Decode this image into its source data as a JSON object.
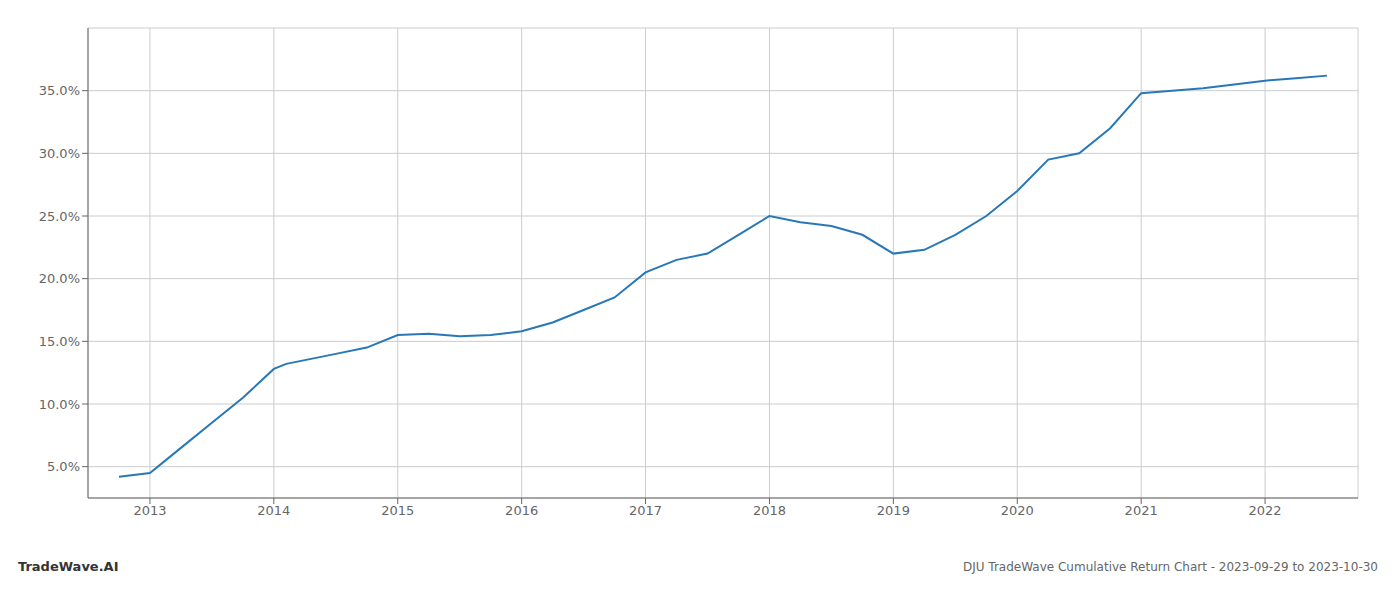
{
  "chart_data": {
    "type": "line",
    "title": "DJU TradeWave Cumulative Return Chart - 2023-09-29 to 2023-10-30",
    "watermark": "TradeWave.AI",
    "color": "#2878b8",
    "x": [
      2012.75,
      2013.0,
      2013.25,
      2013.5,
      2013.75,
      2014.0,
      2014.1,
      2014.25,
      2014.5,
      2014.75,
      2015.0,
      2015.25,
      2015.5,
      2015.75,
      2016.0,
      2016.25,
      2016.5,
      2016.75,
      2017.0,
      2017.25,
      2017.5,
      2017.75,
      2018.0,
      2018.25,
      2018.5,
      2018.75,
      2019.0,
      2019.25,
      2019.5,
      2019.75,
      2020.0,
      2020.25,
      2020.5,
      2020.75,
      2021.0,
      2021.25,
      2021.5,
      2021.75,
      2022.0,
      2022.25,
      2022.5
    ],
    "values": [
      4.2,
      4.5,
      6.5,
      8.5,
      10.5,
      12.8,
      13.2,
      13.5,
      14.0,
      14.5,
      15.5,
      15.6,
      15.4,
      15.5,
      15.8,
      16.5,
      17.5,
      18.5,
      20.5,
      21.5,
      22.0,
      23.5,
      25.0,
      24.5,
      24.2,
      23.5,
      22.0,
      22.3,
      23.5,
      25.0,
      27.0,
      29.5,
      30.0,
      32.0,
      34.8,
      35.0,
      35.2,
      35.5,
      35.8,
      36.0,
      36.2
    ],
    "xlim": [
      2012.5,
      2022.75
    ],
    "ylim": [
      2.5,
      40.0
    ],
    "xticks": [
      2013,
      2014,
      2015,
      2016,
      2017,
      2018,
      2019,
      2020,
      2021,
      2022
    ],
    "yticks": [
      {
        "value": 5.0,
        "label": "5.0%"
      },
      {
        "value": 10.0,
        "label": "10.0%"
      },
      {
        "value": 15.0,
        "label": "15.0%"
      },
      {
        "value": 20.0,
        "label": "20.0%"
      },
      {
        "value": 25.0,
        "label": "25.0%"
      },
      {
        "value": 30.0,
        "label": "30.0%"
      },
      {
        "value": 35.0,
        "label": "35.0%"
      }
    ],
    "grid": true
  }
}
